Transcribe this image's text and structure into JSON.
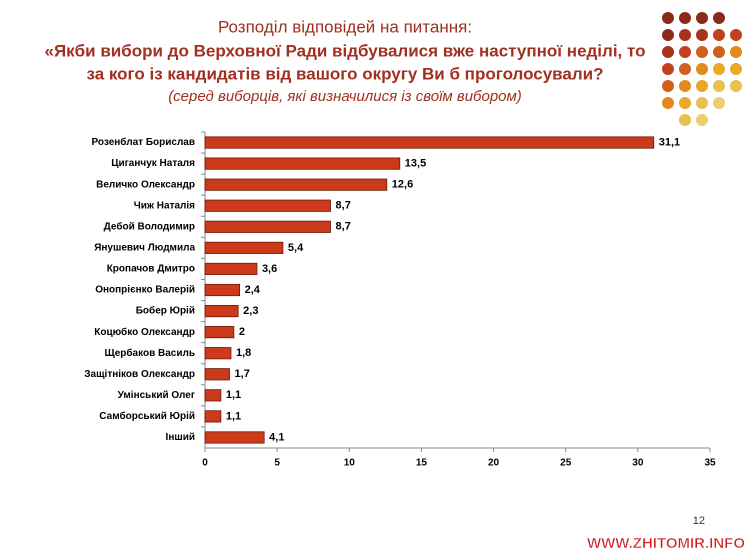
{
  "chart_data": {
    "type": "bar",
    "orientation": "horizontal",
    "title": "Розподіл відповідей на питання:",
    "question": [
      "«Якби вибори до Верховної Ради відбувалися вже наступної неділі, то",
      "за кого із кандидатів від вашого округу Ви б проголосували?"
    ],
    "subtitle": "(серед виборців, які визначилися  із своїм вибором)",
    "categories": [
      "Розенблат Борислав",
      "Циганчук Наталя",
      "Величко Олександр",
      "Чиж Наталія",
      "Дебой Володимир",
      "Янушевич Людмила",
      "Кропачов Дмитро",
      "Онопрієнко Валерій",
      "Бобер Юрій",
      "Коцюбко Олександр",
      "Щербаков Василь",
      "Защітніков Олександр",
      "Умінський Олег",
      "Самборський Юрій",
      "Інший"
    ],
    "values": [
      31.1,
      13.5,
      12.6,
      8.7,
      8.7,
      5.4,
      3.6,
      2.4,
      2.3,
      2,
      1.8,
      1.7,
      1.1,
      1.1,
      4.1
    ],
    "value_labels": [
      "31,1",
      "13,5",
      "12,6",
      "8,7",
      "8,7",
      "5,4",
      "3,6",
      "2,4",
      "2,3",
      "2",
      "1,8",
      "1,7",
      "1,1",
      "1,1",
      "4,1"
    ],
    "color": "#cc3a1a",
    "xlim": [
      0,
      35
    ],
    "xticks": [
      0,
      5,
      10,
      15,
      20,
      25,
      30,
      35
    ],
    "grid": false
  },
  "page_number": "12",
  "watermark": "WWW.ZHITOMIR.INFO"
}
